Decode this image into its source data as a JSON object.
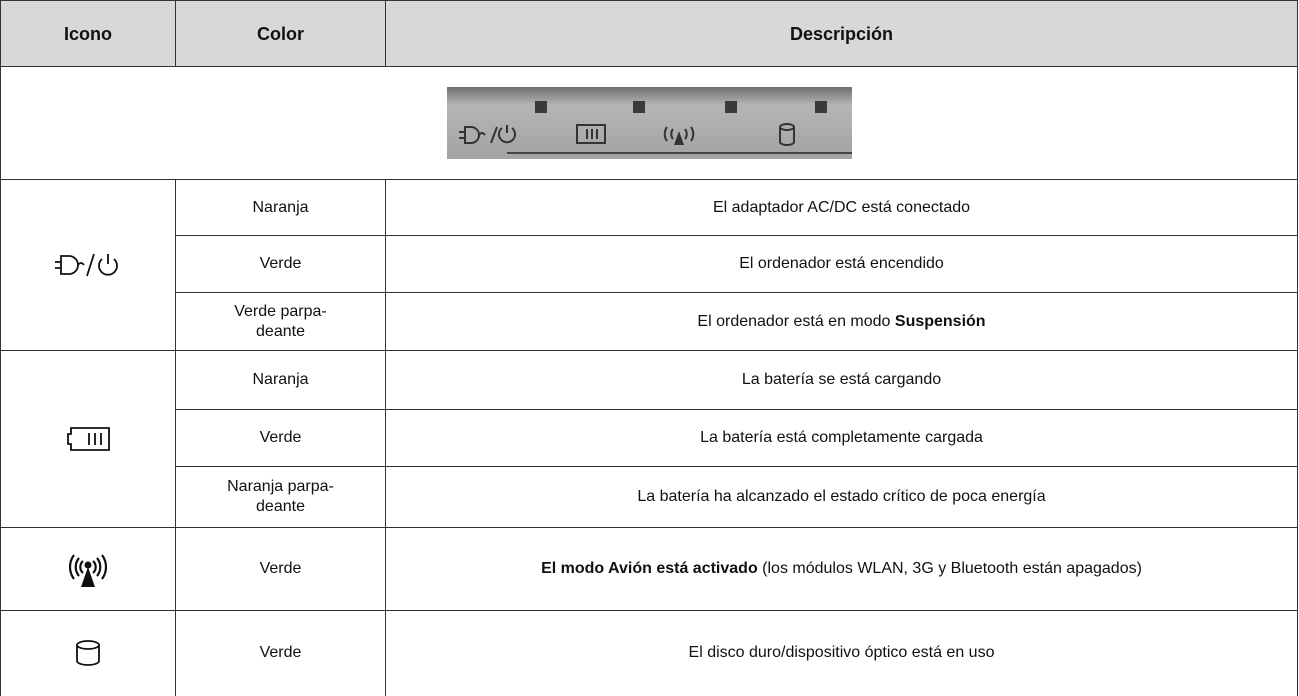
{
  "header": {
    "columns": [
      "Icono",
      "Color",
      "Descripción"
    ]
  },
  "groups": [
    {
      "rows": [
        {
          "color": "Naranja",
          "description": [
            {
              "text": "El adaptador AC/DC está conectado"
            }
          ]
        },
        {
          "color": "Verde",
          "description": [
            {
              "text": "El ordenador está encendido"
            }
          ]
        },
        {
          "color": "Verde parpa-\ndeante",
          "description": [
            {
              "text": "El ordenador está en modo "
            },
            {
              "text": "Suspensión",
              "bold": true
            }
          ]
        }
      ]
    },
    {
      "rows": [
        {
          "color": "Naranja",
          "description": [
            {
              "text": "La batería se está cargando"
            }
          ]
        },
        {
          "color": "Verde",
          "description": [
            {
              "text": "La batería está completamente cargada"
            }
          ]
        },
        {
          "color": "Naranja parpa-\ndeante",
          "description": [
            {
              "text": "La batería ha alcanzado el estado crítico de poca energía"
            }
          ]
        }
      ]
    },
    {
      "rows": [
        {
          "color": "Verde",
          "description": [
            {
              "text": "El modo Avión está activado",
              "bold": true
            },
            {
              "text": " (los módulos WLAN, 3G y Bluetooth están apagados)"
            }
          ]
        }
      ]
    },
    {
      "rows": [
        {
          "color": "Verde",
          "description": [
            {
              "text": "El disco duro/dispositivo óptico está en uso"
            }
          ]
        }
      ]
    }
  ]
}
